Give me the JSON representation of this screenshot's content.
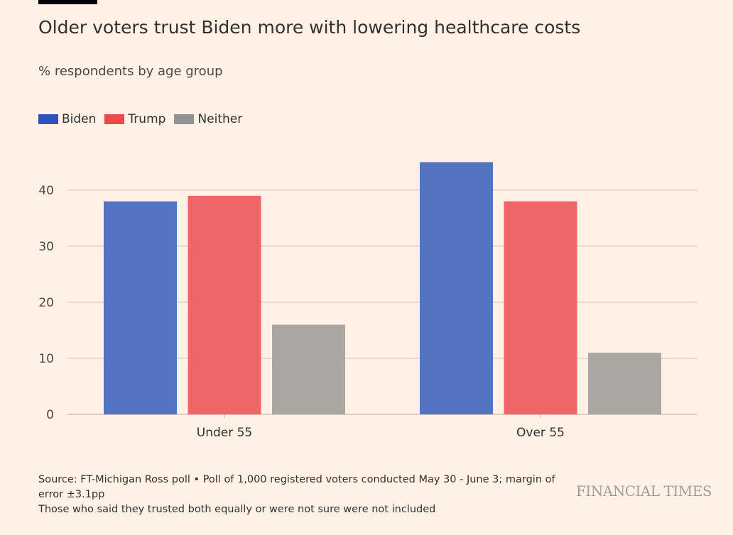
{
  "header": {
    "title": "Older voters trust Biden more with lowering healthcare costs",
    "subtitle": "% respondents by age group"
  },
  "chart_data": {
    "type": "bar",
    "categories": [
      "Under 55",
      "Over 55"
    ],
    "series": [
      {
        "name": "Biden",
        "values": [
          38,
          45
        ],
        "color": "#2b52b8",
        "bar_color": "#5474c1"
      },
      {
        "name": "Trump",
        "values": [
          39,
          38
        ],
        "color": "#ef4848",
        "bar_color": "#f06565"
      },
      {
        "name": "Neither",
        "values": [
          16,
          11
        ],
        "color": "#939393",
        "bar_color": "#aaa6a2"
      }
    ],
    "ylim": [
      0,
      45
    ],
    "yticks": [
      0,
      10,
      20,
      30,
      40
    ],
    "grid": true,
    "legend": "top-left"
  },
  "footer": {
    "source": "Source: FT-Michigan Ross poll • Poll of 1,000 registered voters conducted May 30 - June 3; margin of error ±3.1pp",
    "note": "Those who said they trusted both equally or were not sure were not included",
    "logo": "FINANCIAL TIMES"
  },
  "colors": {
    "background": "#fff1e5",
    "gridline": "#ccc1b7"
  }
}
